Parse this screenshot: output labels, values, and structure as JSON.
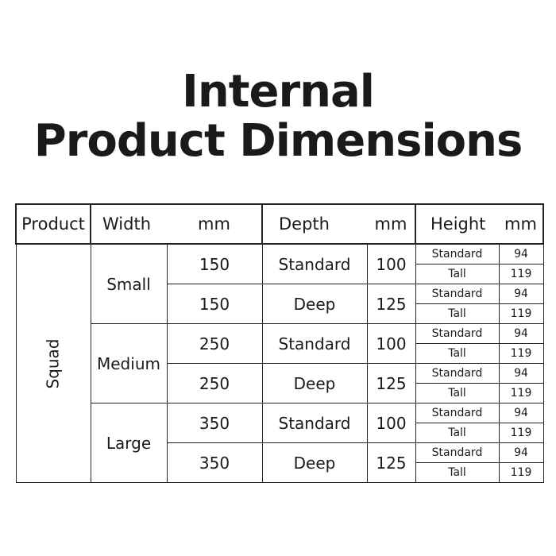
{
  "title": {
    "line1": "Internal",
    "line2": "Product Dimensions"
  },
  "header": {
    "product": "Product",
    "width": "Width",
    "width_unit": "mm",
    "depth": "Depth",
    "depth_unit": "mm",
    "height": "Height",
    "height_unit": "mm"
  },
  "product": "Squad",
  "sizes": [
    {
      "name": "Small",
      "variants": [
        {
          "width": "150",
          "depth": "Standard",
          "depth_mm": "100",
          "heights": [
            {
              "name": "Standard",
              "mm": "94"
            },
            {
              "name": "Tall",
              "mm": "119"
            }
          ]
        },
        {
          "width": "150",
          "depth": "Deep",
          "depth_mm": "125",
          "heights": [
            {
              "name": "Standard",
              "mm": "94"
            },
            {
              "name": "Tall",
              "mm": "119"
            }
          ]
        }
      ]
    },
    {
      "name": "Medium",
      "variants": [
        {
          "width": "250",
          "depth": "Standard",
          "depth_mm": "100",
          "heights": [
            {
              "name": "Standard",
              "mm": "94"
            },
            {
              "name": "Tall",
              "mm": "119"
            }
          ]
        },
        {
          "width": "250",
          "depth": "Deep",
          "depth_mm": "125",
          "heights": [
            {
              "name": "Standard",
              "mm": "94"
            },
            {
              "name": "Tall",
              "mm": "119"
            }
          ]
        }
      ]
    },
    {
      "name": "Large",
      "variants": [
        {
          "width": "350",
          "depth": "Standard",
          "depth_mm": "100",
          "heights": [
            {
              "name": "Standard",
              "mm": "94"
            },
            {
              "name": "Tall",
              "mm": "119"
            }
          ]
        },
        {
          "width": "350",
          "depth": "Deep",
          "depth_mm": "125",
          "heights": [
            {
              "name": "Standard",
              "mm": "94"
            },
            {
              "name": "Tall",
              "mm": "119"
            }
          ]
        }
      ]
    }
  ]
}
